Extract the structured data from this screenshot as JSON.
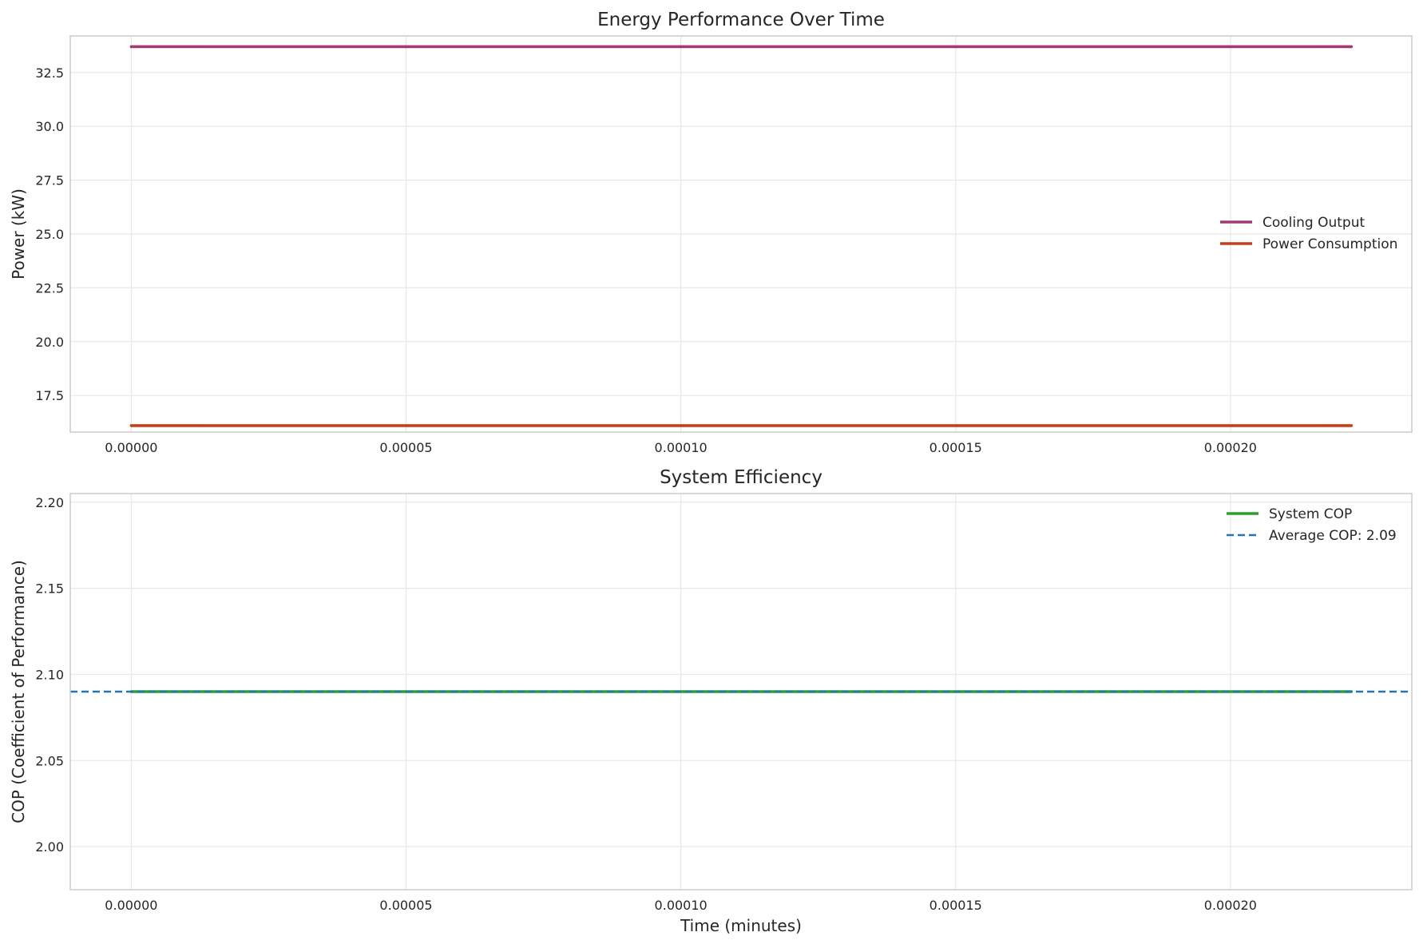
{
  "chart_data": [
    {
      "type": "line",
      "title": "Energy Performance Over Time",
      "xlabel": "",
      "ylabel": "Power (kW)",
      "xlim": [
        -1.11e-05,
        0.000233
      ],
      "ylim": [
        15.8,
        34.2
      ],
      "xticks": [
        0,
        5e-05,
        0.0001,
        0.00015,
        0.0002
      ],
      "xtick_labels": [
        "0.00000",
        "0.00005",
        "0.00010",
        "0.00015",
        "0.00020"
      ],
      "yticks": [
        17.5,
        20.0,
        22.5,
        25.0,
        27.5,
        30.0,
        32.5
      ],
      "ytick_labels": [
        "17.5",
        "20.0",
        "22.5",
        "25.0",
        "27.5",
        "30.0",
        "32.5"
      ],
      "grid": true,
      "legend_position": "center-right",
      "series": [
        {
          "name": "Cooling Output",
          "color": "#a23b72",
          "style": "solid",
          "x": [
            0,
            0.000222
          ],
          "y": [
            33.7,
            33.7
          ]
        },
        {
          "name": "Power Consumption",
          "color": "#c73e1d",
          "style": "solid",
          "x": [
            0,
            0.000222
          ],
          "y": [
            16.1,
            16.1
          ]
        }
      ]
    },
    {
      "type": "line",
      "title": "System Efficiency",
      "xlabel": "Time (minutes)",
      "ylabel": "COP (Coefficient of Performance)",
      "xlim": [
        -1.11e-05,
        0.000233
      ],
      "ylim": [
        1.975,
        2.205
      ],
      "xticks": [
        0,
        5e-05,
        0.0001,
        0.00015,
        0.0002
      ],
      "xtick_labels": [
        "0.00000",
        "0.00005",
        "0.00010",
        "0.00015",
        "0.00020"
      ],
      "yticks": [
        2.0,
        2.05,
        2.1,
        2.15,
        2.2
      ],
      "ytick_labels": [
        "2.00",
        "2.05",
        "2.10",
        "2.15",
        "2.20"
      ],
      "grid": true,
      "legend_position": "upper-right",
      "series": [
        {
          "name": "System COP",
          "color": "#2ca02c",
          "style": "solid",
          "x": [
            0,
            0.000222
          ],
          "y": [
            2.09,
            2.09
          ]
        },
        {
          "name": "Average COP: 2.09",
          "color": "#1f77b4",
          "style": "dashed",
          "hline": 2.09
        }
      ]
    }
  ]
}
